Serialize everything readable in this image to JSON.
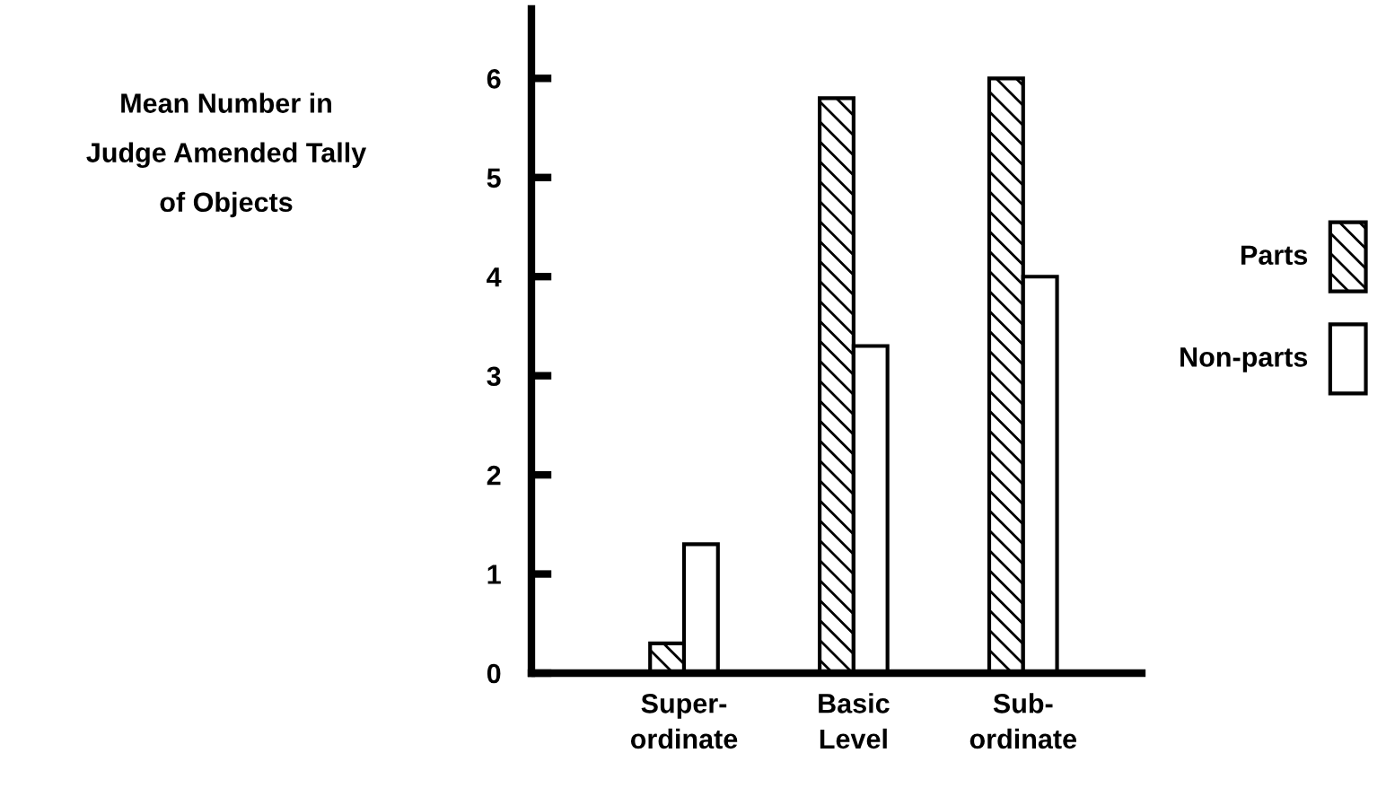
{
  "chart_data": {
    "type": "bar",
    "ylabel": "Mean Number in\nJudge Amended Tally\nof Objects",
    "categories": [
      "Super-\nordinate",
      "Basic\nLevel",
      "Sub-\nordinate"
    ],
    "series": [
      {
        "name": "Parts",
        "color": "#000000",
        "values": [
          0.3,
          5.8,
          6.0
        ]
      },
      {
        "name": "Non-parts",
        "color": "#000000",
        "values": [
          1.3,
          3.3,
          4.0
        ]
      }
    ],
    "ylim": [
      0,
      6.7
    ],
    "yticks": [
      0,
      1,
      2,
      3,
      4,
      5,
      6
    ],
    "grid": false,
    "legend": "right"
  }
}
